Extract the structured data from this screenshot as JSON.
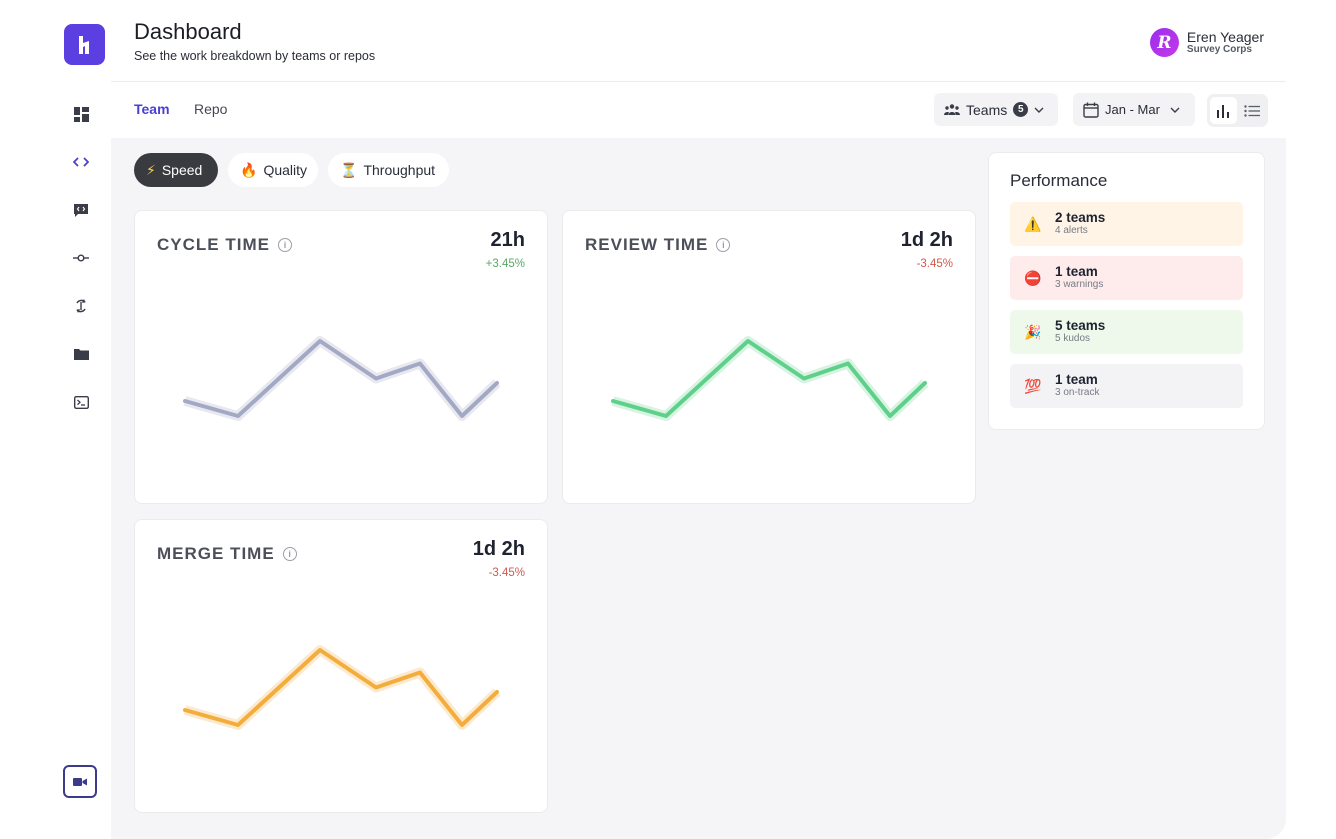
{
  "header": {
    "title": "Dashboard",
    "subtitle": "See the work breakdown by teams or repos",
    "user": {
      "initial": "R",
      "name": "Eren Yeager",
      "org": "Survey Corps"
    }
  },
  "tabs": [
    {
      "label": "Team",
      "active": true
    },
    {
      "label": "Repo",
      "active": false
    }
  ],
  "filters": {
    "teams_label": "Teams",
    "teams_count": "5",
    "date_range": "Jan - Mar"
  },
  "chips": [
    {
      "label": "Speed",
      "icon": "⚡",
      "active": true
    },
    {
      "label": "Quality",
      "icon": "🔥",
      "active": false
    },
    {
      "label": "Throughput",
      "icon": "⏳",
      "active": false
    }
  ],
  "metrics": [
    {
      "title": "CYCLE TIME",
      "value": "21h",
      "delta": "+3.45%",
      "trend": "up",
      "color": "#a3a9c4"
    },
    {
      "title": "REVIEW TIME",
      "value": "1d 2h",
      "delta": "-3.45%",
      "trend": "down",
      "color": "#5fd08a"
    },
    {
      "title": "MERGE TIME",
      "value": "1d 2h",
      "delta": "-3.45%",
      "trend": "down",
      "color": "#f4ac3c"
    }
  ],
  "chart_data": {
    "type": "line",
    "series_y": [
      30,
      20,
      70,
      45,
      55,
      20,
      42
    ]
  },
  "performance": {
    "title": "Performance",
    "items": [
      {
        "emoji": "⚠️",
        "main": "2 teams",
        "sub": "4 alerts",
        "bg": "#fff4e6"
      },
      {
        "emoji": "⛔",
        "main": "1 team",
        "sub": "3 warnings",
        "bg": "#fdeceb"
      },
      {
        "emoji": "🎉",
        "main": "5 teams",
        "sub": "5 kudos",
        "bg": "#eef9ec"
      },
      {
        "emoji": "💯",
        "main": "1 team",
        "sub": "3 on-track",
        "bg": "#f3f3f5"
      }
    ]
  }
}
